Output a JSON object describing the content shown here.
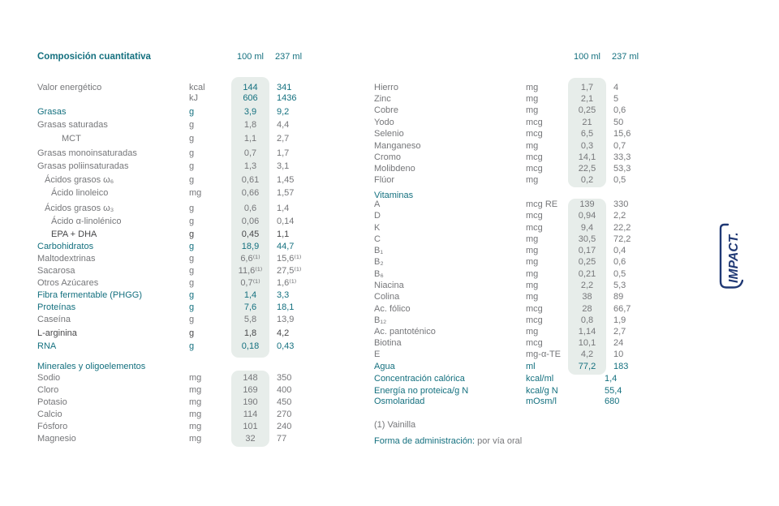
{
  "colors": {
    "teal": "#14707f",
    "gray": "#76777a",
    "dark": "#474749",
    "band": "#e7edea",
    "logo_navy": "#1f3874"
  },
  "header": {
    "title": "Composición cuantitativa",
    "col_100": "100 ml",
    "col_237": "237 ml"
  },
  "left_table": {
    "sections": [
      {
        "rows": [
          {
            "label": "Valor energético",
            "unit": "kcal",
            "v100": "144",
            "v237": "341",
            "style": "gray",
            "vstyle": "teal"
          },
          {
            "label": "",
            "unit": "kJ",
            "v100": "606",
            "v237": "1436",
            "style": "gray",
            "vstyle": "teal"
          },
          {
            "label": "Grasas",
            "unit": "g",
            "v100": "3,9",
            "v237": "9,2",
            "style": "teal"
          },
          {
            "label": "Grasas saturadas",
            "unit": "g",
            "v100": "1,8",
            "v237": "4,4",
            "style": "gray"
          },
          {
            "label": "MCT",
            "indent": 3,
            "unit": "g",
            "v100": "1,1",
            "v237": "2,7",
            "style": "gray"
          },
          {
            "label": "Grasas monoinsaturadas",
            "unit": "g",
            "v100": "0,7",
            "v237": "1,7",
            "style": "gray"
          },
          {
            "label": "Grasas poliinsaturadas",
            "unit": "g",
            "v100": "1,3",
            "v237": "3,1",
            "style": "gray"
          },
          {
            "label": "Ácidos grasos ω₆",
            "indent": 1,
            "unit": "g",
            "v100": "0,61",
            "v237": "1,45",
            "style": "gray"
          },
          {
            "label": "Ácido linoleico",
            "indent": 2,
            "unit": "mg",
            "v100": "0,66",
            "v237": "1,57",
            "style": "gray"
          },
          {
            "label": "Ácidos grasos ω₃",
            "indent": 1,
            "unit": "g",
            "v100": "0,6",
            "v237": "1,4",
            "style": "gray"
          },
          {
            "label": "Ácido α-linolénico",
            "indent": 2,
            "unit": "g",
            "v100": "0,06",
            "v237": "0,14",
            "style": "gray"
          },
          {
            "label": "EPA + DHA",
            "indent": 2,
            "unit": "g",
            "v100": "0,45",
            "v237": "1,1",
            "style": "dark"
          },
          {
            "label": "Carbohidratos",
            "unit": "g",
            "v100": "18,9",
            "v237": "44,7",
            "style": "teal"
          },
          {
            "label": "Maltodextrinas",
            "unit": "g",
            "v100": "6,6⁽¹⁾",
            "v237": "15,6⁽¹⁾",
            "style": "gray"
          },
          {
            "label": "Sacarosa",
            "unit": "g",
            "v100": "11,6⁽¹⁾",
            "v237": "27,5⁽¹⁾",
            "style": "gray"
          },
          {
            "label": "Otros Azúcares",
            "unit": "g",
            "v100": "0,7⁽¹⁾",
            "v237": "1,6⁽¹⁾",
            "style": "gray"
          },
          {
            "label": "Fibra fermentable (PHGG)",
            "unit": "g",
            "v100": "1,4",
            "v237": "3,3",
            "style": "teal"
          },
          {
            "label": "Proteínas",
            "unit": "g",
            "v100": "7,6",
            "v237": "18,1",
            "style": "teal"
          },
          {
            "label": "Caseína",
            "unit": "g",
            "v100": "5,8",
            "v237": "13,9",
            "style": "gray"
          },
          {
            "label": "L-arginina",
            "unit": "g",
            "v100": "1,8",
            "v237": "4,2",
            "style": "dark"
          },
          {
            "label": "RNA",
            "unit": "g",
            "v100": "0,18",
            "v237": "0,43",
            "style": "teal"
          }
        ]
      },
      {
        "header": "Minerales y oligoelementos",
        "rows": [
          {
            "label": "Sodio",
            "unit": "mg",
            "v100": "148",
            "v237": "350",
            "style": "gray"
          },
          {
            "label": "Cloro",
            "unit": "mg",
            "v100": "169",
            "v237": "400",
            "style": "gray"
          },
          {
            "label": "Potasio",
            "unit": "mg",
            "v100": "190",
            "v237": "450",
            "style": "gray"
          },
          {
            "label": "Calcio",
            "unit": "mg",
            "v100": "114",
            "v237": "270",
            "style": "gray"
          },
          {
            "label": "Fósforo",
            "unit": "mg",
            "v100": "101",
            "v237": "240",
            "style": "gray"
          },
          {
            "label": "Magnesio",
            "unit": "mg",
            "v100": "32",
            "v237": "77",
            "style": "gray"
          }
        ]
      }
    ]
  },
  "right_table": {
    "sections": [
      {
        "rows": [
          {
            "label": "Hierro",
            "unit": "mg",
            "v100": "1,7",
            "v237": "4",
            "style": "gray"
          },
          {
            "label": "Zinc",
            "unit": "mg",
            "v100": "2,1",
            "v237": "5",
            "style": "gray"
          },
          {
            "label": "Cobre",
            "unit": "mg",
            "v100": "0,25",
            "v237": "0,6",
            "style": "gray"
          },
          {
            "label": "Yodo",
            "unit": "mcg",
            "v100": "21",
            "v237": "50",
            "style": "gray"
          },
          {
            "label": "Selenio",
            "unit": "mcg",
            "v100": "6,5",
            "v237": "15,6",
            "style": "gray"
          },
          {
            "label": "Manganeso",
            "unit": "mg",
            "v100": "0,3",
            "v237": "0,7",
            "style": "gray"
          },
          {
            "label": "Cromo",
            "unit": "mcg",
            "v100": "14,1",
            "v237": "33,3",
            "style": "gray"
          },
          {
            "label": "Molibdeno",
            "unit": "mcg",
            "v100": "22,5",
            "v237": "53,3",
            "style": "gray"
          },
          {
            "label": "Flúor",
            "unit": "mg",
            "v100": "0,2",
            "v237": "0,5",
            "style": "gray"
          }
        ]
      },
      {
        "header": "Vitaminas",
        "rows": [
          {
            "label": "A",
            "unit": "mcg RE",
            "v100": "139",
            "v237": "330",
            "style": "gray"
          },
          {
            "label": "D",
            "unit": "mcg",
            "v100": "0,94",
            "v237": "2,2",
            "style": "gray"
          },
          {
            "label": "K",
            "unit": "mcg",
            "v100": "9,4",
            "v237": "22,2",
            "style": "gray"
          },
          {
            "label": "C",
            "unit": "mg",
            "v100": "30,5",
            "v237": "72,2",
            "style": "gray"
          },
          {
            "label": "B₁",
            "unit": "mg",
            "v100": "0,17",
            "v237": "0,4",
            "style": "gray"
          },
          {
            "label": "B₂",
            "unit": "mg",
            "v100": "0,25",
            "v237": "0,6",
            "style": "gray"
          },
          {
            "label": "B₆",
            "unit": "mg",
            "v100": "0,21",
            "v237": "0,5",
            "style": "gray"
          },
          {
            "label": "Niacina",
            "unit": "mg",
            "v100": "2,2",
            "v237": "5,3",
            "style": "gray"
          },
          {
            "label": "Colina",
            "unit": "mg",
            "v100": "38",
            "v237": "89",
            "style": "gray"
          },
          {
            "label": "Ac. fólico",
            "unit": "mcg",
            "v100": "28",
            "v237": "66,7",
            "style": "gray"
          },
          {
            "label": "B₁₂",
            "unit": "mcg",
            "v100": "0,8",
            "v237": "1,9",
            "style": "gray"
          },
          {
            "label": "Ac. pantoténico",
            "unit": "mg",
            "v100": "1,14",
            "v237": "2,7",
            "style": "gray"
          },
          {
            "label": "Biotina",
            "unit": "mcg",
            "v100": "10,1",
            "v237": "24",
            "style": "gray"
          },
          {
            "label": "E",
            "unit": "mg-α-TE",
            "v100": "4,2",
            "v237": "10",
            "style": "gray"
          },
          {
            "label": "Agua",
            "unit": "ml",
            "v100": "77,2",
            "v237": "183",
            "style": "teal"
          }
        ]
      },
      {
        "rows": [
          {
            "label": "Concentración calórica",
            "unit": "kcal/ml",
            "v100": "",
            "v237": "1,4",
            "style": "teal"
          },
          {
            "label": "Energía no proteica/g N",
            "unit": "kcal/g N",
            "v100": "",
            "v237": "55,4",
            "style": "teal"
          },
          {
            "label": "Osmolaridad",
            "unit": "mOsm/l",
            "v100": "",
            "v237": "680",
            "style": "teal"
          }
        ]
      }
    ]
  },
  "footnotes": {
    "note1": "(1) Vainilla",
    "admin_label": "Forma de administración:",
    "admin_value": "por vía oral"
  },
  "logo": {
    "text": "IMPACT."
  }
}
